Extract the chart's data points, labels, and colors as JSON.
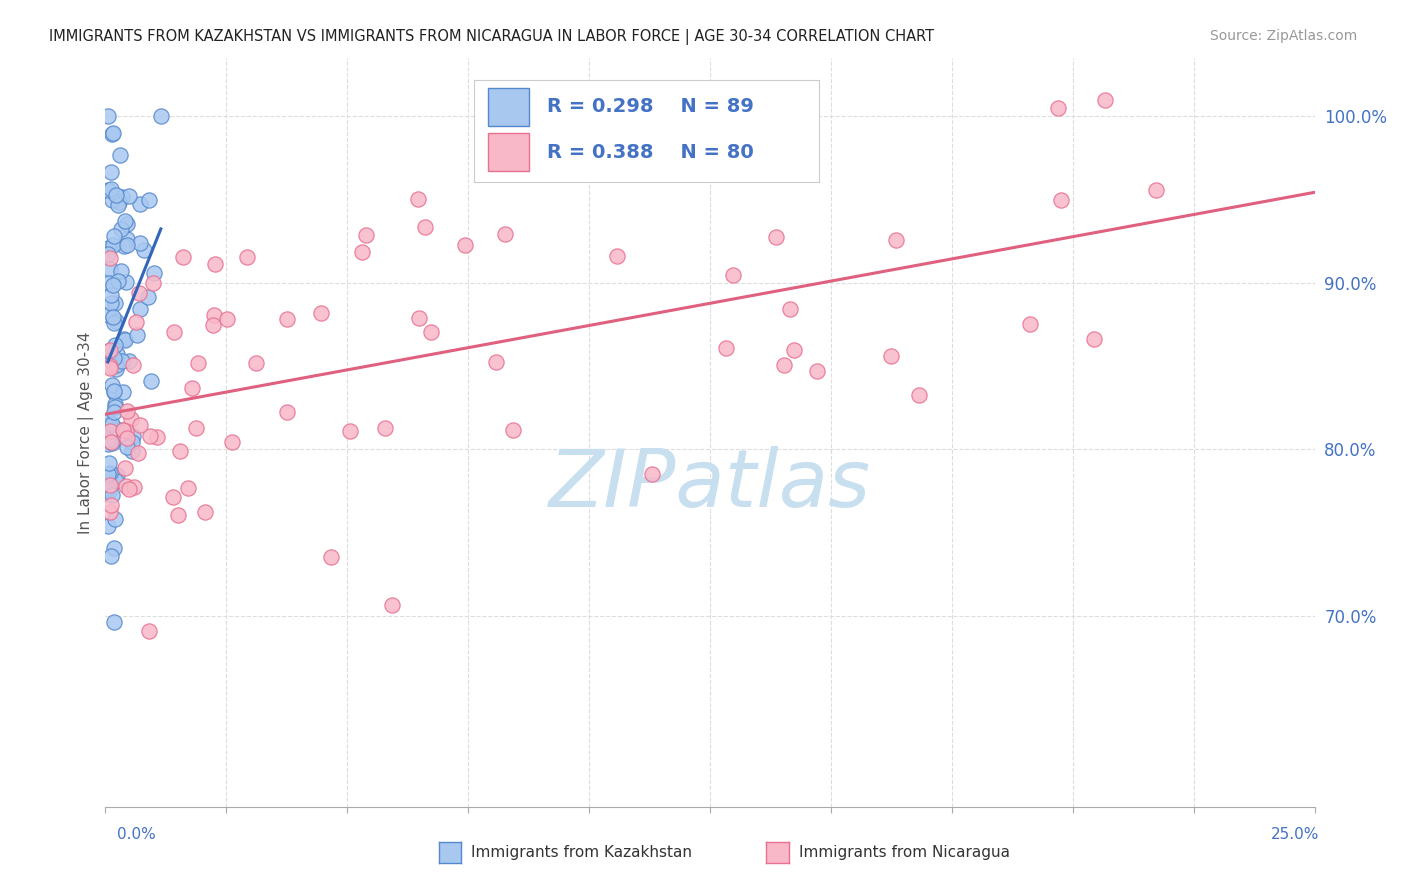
{
  "title": "IMMIGRANTS FROM KAZAKHSTAN VS IMMIGRANTS FROM NICARAGUA IN LABOR FORCE | AGE 30-34 CORRELATION CHART",
  "source": "Source: ZipAtlas.com",
  "ylabel": "In Labor Force | Age 30-34",
  "xmin": 0.0,
  "xmax": 0.25,
  "ymin": 0.585,
  "ymax": 1.035,
  "ytick_vals": [
    0.7,
    0.8,
    0.9,
    1.0
  ],
  "ytick_labels": [
    "70.0%",
    "80.0%",
    "90.0%",
    "100.0%"
  ],
  "color_kaz_fill": "#A8C8F0",
  "color_kaz_edge": "#5588CC",
  "color_kaz_line": "#3366BB",
  "color_nic_fill": "#F8B8C8",
  "color_nic_edge": "#E87090",
  "color_nic_line": "#E06080",
  "color_legend_text": "#4472C4",
  "watermark_text": "ZIPatlas",
  "watermark_color": "#C8DFF0",
  "grid_color": "#DDDDDD",
  "legend_R_kaz": "R = 0.298",
  "legend_N_kaz": "N = 89",
  "legend_R_nic": "R = 0.388",
  "legend_N_nic": "N = 80"
}
